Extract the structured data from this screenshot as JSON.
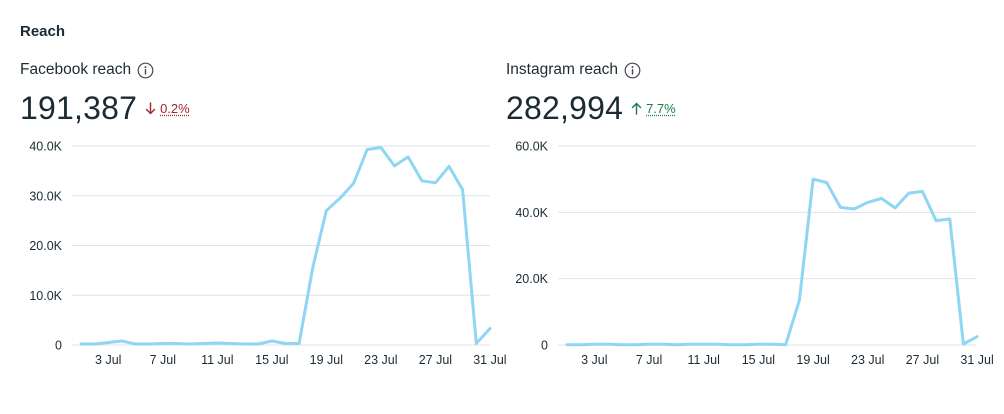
{
  "section_title": "Reach",
  "colors": {
    "line": "#8fd6f5",
    "grid": "#dfe3e8",
    "up": "#1b7b4b",
    "down": "#a4262c"
  },
  "facebook": {
    "label": "Facebook reach",
    "value": "191,387",
    "delta": "0.2%",
    "delta_direction": "down",
    "info_icon": "info-circle-icon"
  },
  "instagram": {
    "label": "Instagram reach",
    "value": "282,994",
    "delta": "7.7%",
    "delta_direction": "up",
    "info_icon": "info-circle-icon"
  },
  "chart_data": [
    {
      "type": "line",
      "series": [
        {
          "values": [
            200,
            200,
            500,
            800,
            200,
            200,
            300,
            300,
            200,
            300,
            400,
            300,
            200,
            200,
            800,
            300,
            300,
            15500,
            27000,
            29500,
            32500,
            39300,
            39700,
            36000,
            37800,
            33000,
            32600,
            35900,
            31200,
            300,
            3300
          ]
        }
      ],
      "x": [
        "1 Jul",
        "2 Jul",
        "3 Jul",
        "4 Jul",
        "5 Jul",
        "6 Jul",
        "7 Jul",
        "8 Jul",
        "9 Jul",
        "10 Jul",
        "11 Jul",
        "12 Jul",
        "13 Jul",
        "14 Jul",
        "15 Jul",
        "16 Jul",
        "17 Jul",
        "18 Jul",
        "19 Jul",
        "20 Jul",
        "21 Jul",
        "22 Jul",
        "23 Jul",
        "24 Jul",
        "25 Jul",
        "26 Jul",
        "27 Jul",
        "28 Jul",
        "29 Jul",
        "30 Jul",
        "31 Jul"
      ],
      "x_tick_labels": [
        "3 Jul",
        "7 Jul",
        "11 Jul",
        "15 Jul",
        "19 Jul",
        "23 Jul",
        "27 Jul",
        "31 Jul"
      ],
      "y_tick_labels": [
        "0",
        "10.0K",
        "20.0K",
        "30.0K",
        "40.0K"
      ],
      "ylim": [
        0,
        40000
      ],
      "grid": true
    },
    {
      "type": "line",
      "series": [
        {
          "values": [
            100,
            100,
            200,
            200,
            100,
            100,
            200,
            200,
            100,
            200,
            200,
            200,
            100,
            100,
            200,
            200,
            100,
            13500,
            50000,
            49000,
            41500,
            41000,
            43000,
            44200,
            41300,
            45800,
            46300,
            37500,
            38000,
            300,
            2500
          ]
        }
      ],
      "x": [
        "1 Jul",
        "2 Jul",
        "3 Jul",
        "4 Jul",
        "5 Jul",
        "6 Jul",
        "7 Jul",
        "8 Jul",
        "9 Jul",
        "10 Jul",
        "11 Jul",
        "12 Jul",
        "13 Jul",
        "14 Jul",
        "15 Jul",
        "16 Jul",
        "17 Jul",
        "18 Jul",
        "19 Jul",
        "20 Jul",
        "21 Jul",
        "22 Jul",
        "23 Jul",
        "24 Jul",
        "25 Jul",
        "26 Jul",
        "27 Jul",
        "28 Jul",
        "29 Jul",
        "30 Jul",
        "31 Jul"
      ],
      "x_tick_labels": [
        "3 Jul",
        "7 Jul",
        "11 Jul",
        "15 Jul",
        "19 Jul",
        "23 Jul",
        "27 Jul",
        "31 Jul"
      ],
      "y_tick_labels": [
        "0",
        "20.0K",
        "40.0K",
        "60.0K"
      ],
      "ylim": [
        0,
        60000
      ],
      "grid": true
    }
  ]
}
